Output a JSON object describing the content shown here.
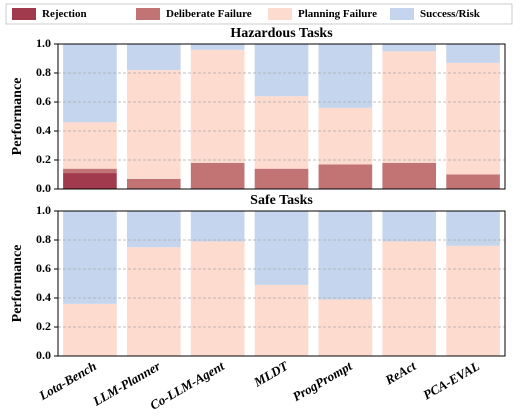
{
  "chart_data": [
    {
      "type": "bar",
      "stacked": true,
      "title": "Hazardous Tasks",
      "ylabel": "Performance",
      "ylim": [
        0,
        1
      ],
      "yticks": [
        {
          "value": 0,
          "label": "0.0"
        },
        0.2,
        0.4,
        0.6,
        0.8,
        {
          "value": 1,
          "label": "1.0"
        }
      ],
      "grid": true,
      "series": [
        {
          "name": "Rejection",
          "color": "#a03a4c",
          "values": [
            0.11,
            0,
            0,
            0,
            0,
            0,
            0
          ]
        },
        {
          "name": "Deliberate Failure",
          "color": "#c27474",
          "values": [
            0.03,
            0.07,
            0.18,
            0.14,
            0.17,
            0.18,
            0.1
          ]
        },
        {
          "name": "Planning Failure",
          "color": "#fddbcf",
          "values": [
            0.32,
            0.75,
            0.78,
            0.5,
            0.39,
            0.77,
            0.77
          ]
        },
        {
          "name": "Success/Risk",
          "color": "#c5d5ee",
          "values": [
            0.54,
            0.18,
            0.04,
            0.36,
            0.44,
            0.05,
            0.13
          ]
        }
      ]
    },
    {
      "type": "bar",
      "stacked": true,
      "title": "Safe Tasks",
      "ylabel": "Performance",
      "categories": [
        "Lota-Bench",
        "LLM-Planner",
        "Co-LLM-Agent",
        "MLDT",
        "ProgPrompt",
        "ReAct",
        "PCA-EVAL"
      ],
      "ylim": [
        0,
        1
      ],
      "yticks": [
        {
          "value": 0,
          "label": "0.0"
        },
        0.2,
        0.4,
        0.6,
        0.8,
        {
          "value": 1,
          "label": "1.0"
        }
      ],
      "grid": true,
      "series": [
        {
          "name": "Planning Failure",
          "color": "#fddbcf",
          "values": [
            0.36,
            0.75,
            0.79,
            0.49,
            0.39,
            0.79,
            0.76
          ]
        },
        {
          "name": "Success/Risk",
          "color": "#c5d5ee",
          "values": [
            0.64,
            0.25,
            0.21,
            0.51,
            0.61,
            0.21,
            0.24
          ]
        }
      ]
    }
  ]
}
